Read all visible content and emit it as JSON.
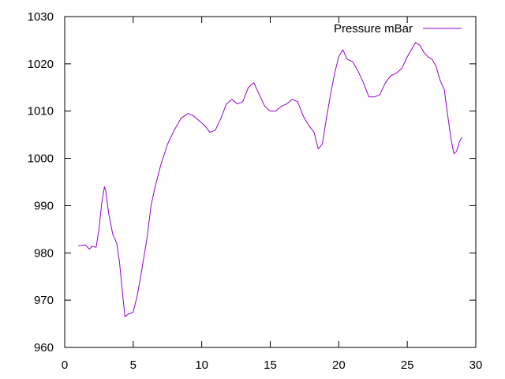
{
  "chart_data": {
    "type": "line",
    "title": "",
    "xlabel": "",
    "ylabel": "",
    "xlim": [
      0,
      30
    ],
    "ylim": [
      960,
      1030
    ],
    "xticks": [
      0,
      5,
      10,
      15,
      20,
      25,
      30
    ],
    "yticks": [
      960,
      970,
      980,
      990,
      1000,
      1010,
      1020,
      1030
    ],
    "xtick_labels": [
      "0",
      "5",
      "10",
      "15",
      "20",
      "25",
      "30"
    ],
    "ytick_labels": [
      "960",
      "970",
      "980",
      "990",
      "1000",
      "1010",
      "1020",
      "1030"
    ],
    "grid": false,
    "legend_position": "top-right",
    "series": [
      {
        "name": "Pressure mBar",
        "color": "#9400d3",
        "x": [
          1.0,
          1.5,
          1.8,
          2.0,
          2.3,
          2.5,
          2.7,
          2.9,
          3.0,
          3.2,
          3.5,
          3.8,
          4.0,
          4.2,
          4.4,
          4.6,
          4.8,
          5.0,
          5.3,
          5.6,
          6.0,
          6.3,
          6.6,
          7.0,
          7.5,
          8.0,
          8.5,
          9.0,
          9.4,
          9.8,
          10.2,
          10.6,
          11.0,
          11.4,
          11.8,
          12.2,
          12.6,
          13.0,
          13.4,
          13.8,
          14.2,
          14.6,
          15.0,
          15.4,
          15.8,
          16.2,
          16.6,
          17.0,
          17.4,
          17.8,
          18.2,
          18.5,
          18.8,
          19.1,
          19.4,
          19.7,
          20.0,
          20.3,
          20.6,
          21.0,
          21.4,
          21.8,
          22.2,
          22.6,
          23.0,
          23.4,
          23.8,
          24.2,
          24.6,
          25.0,
          25.3,
          25.6,
          25.9,
          26.2,
          26.5,
          26.8,
          27.1,
          27.4,
          27.7,
          28.0,
          28.2,
          28.4,
          28.6,
          28.8,
          29.0
        ],
        "values": [
          981.5,
          981.7,
          980.8,
          981.4,
          981.2,
          985.0,
          990.5,
          994.0,
          993.0,
          988.5,
          984.0,
          982.0,
          978.0,
          972.0,
          966.5,
          967.0,
          967.2,
          967.5,
          971.0,
          976.0,
          983.0,
          990.0,
          994.0,
          998.5,
          1003.0,
          1006.0,
          1008.5,
          1009.5,
          1009.0,
          1008.0,
          1007.0,
          1005.5,
          1006.0,
          1008.5,
          1011.5,
          1012.5,
          1011.5,
          1012.0,
          1015.0,
          1016.0,
          1013.5,
          1011.0,
          1010.0,
          1010.0,
          1011.0,
          1011.5,
          1012.5,
          1012.0,
          1009.0,
          1007.0,
          1005.5,
          1002.0,
          1003.0,
          1008.5,
          1013.5,
          1018.0,
          1021.5,
          1023.0,
          1021.0,
          1020.5,
          1018.5,
          1016.0,
          1013.0,
          1013.0,
          1013.5,
          1016.0,
          1017.5,
          1018.0,
          1019.0,
          1021.5,
          1023.0,
          1024.5,
          1024.0,
          1022.5,
          1021.5,
          1021.0,
          1019.5,
          1016.5,
          1014.5,
          1008.0,
          1004.0,
          1001.0,
          1001.5,
          1003.5,
          1004.5
        ]
      }
    ]
  }
}
